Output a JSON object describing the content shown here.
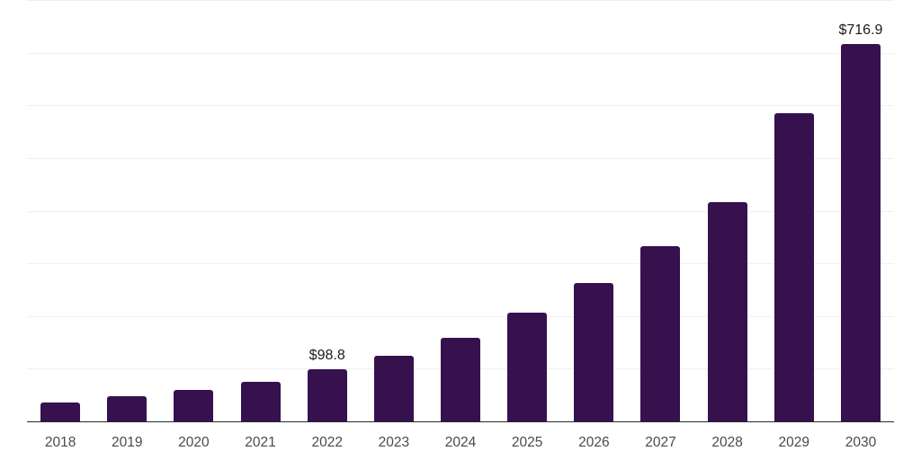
{
  "chart_data": {
    "type": "bar",
    "title": "",
    "xlabel": "",
    "ylabel": "",
    "categories": [
      "2018",
      "2019",
      "2020",
      "2021",
      "2022",
      "2023",
      "2024",
      "2025",
      "2026",
      "2027",
      "2028",
      "2029",
      "2030"
    ],
    "values": [
      36.5,
      48,
      59.5,
      74.5,
      98.8,
      124.5,
      158.5,
      206.5,
      262.5,
      332.5,
      416,
      585,
      716.9
    ],
    "data_labels": {
      "2022": "$98.8",
      "2030": "$716.9"
    },
    "ylim": [
      0,
      800
    ],
    "grid_interval": 100,
    "grid": true,
    "legend": false,
    "y_tick_labels_shown": false,
    "colors": {
      "bar": "#36114e",
      "grid": "#f0f0f0",
      "axis": "#2b2b2b",
      "tick_label": "#4a4a4a",
      "value_label": "#1b1b1b",
      "background": "#ffffff"
    }
  }
}
